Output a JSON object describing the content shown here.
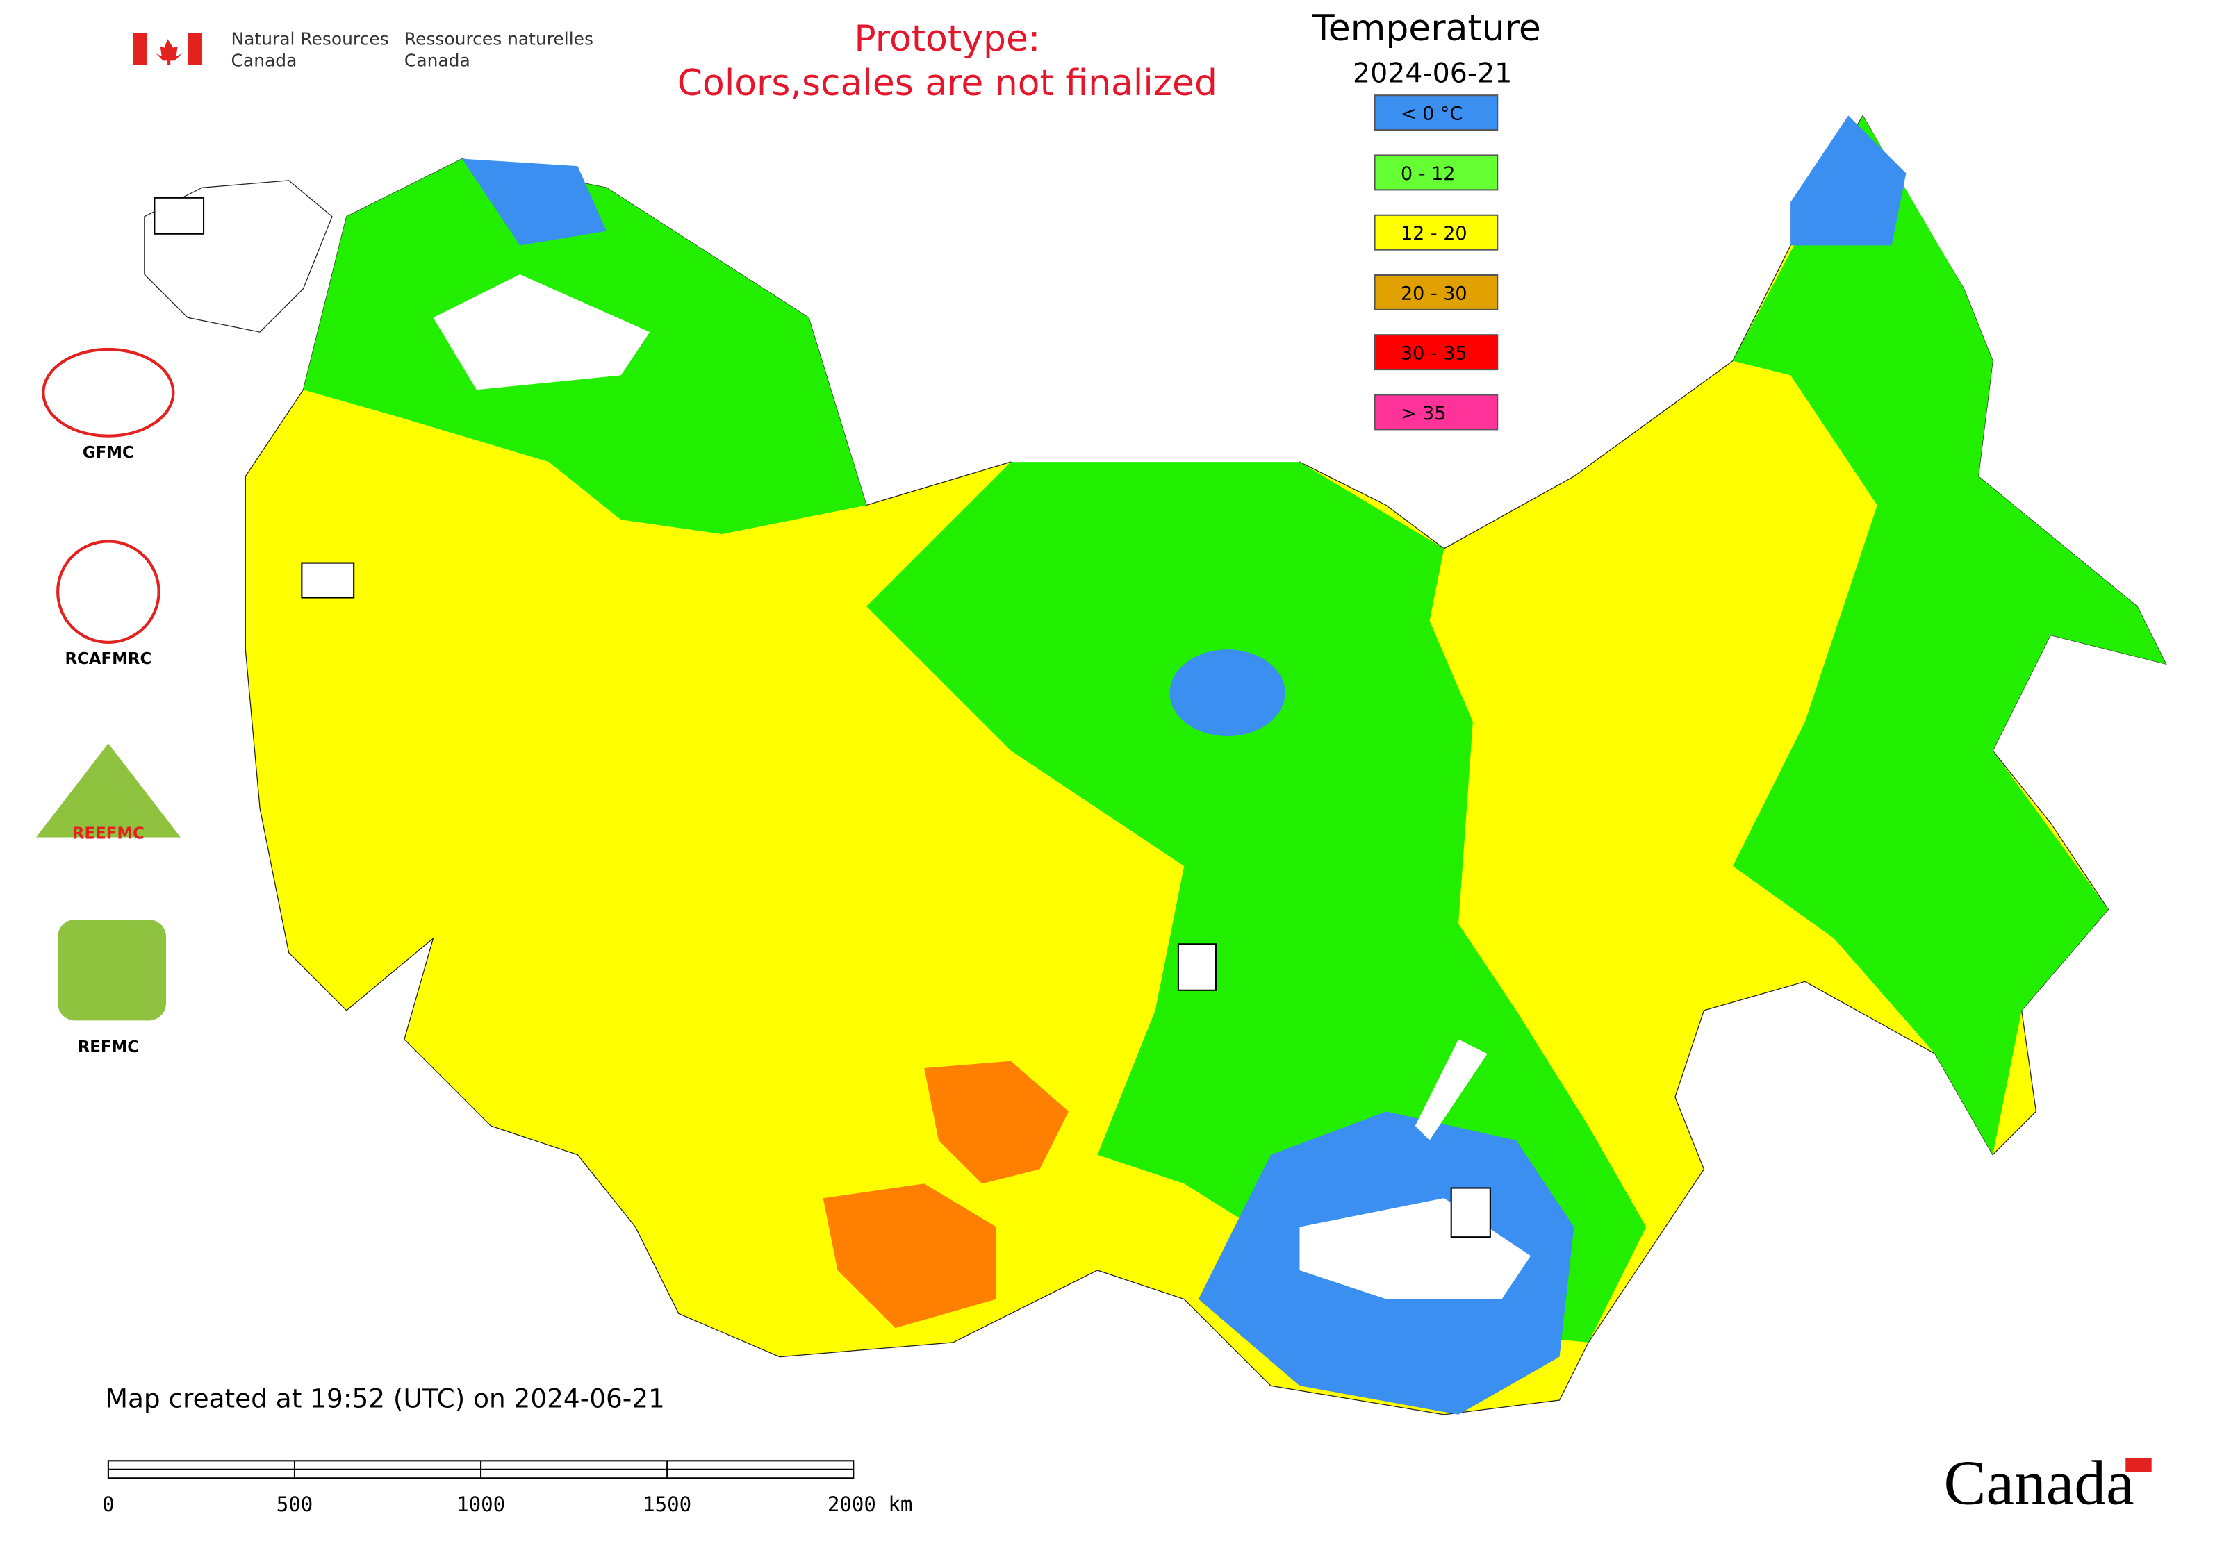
{
  "header": {
    "agency_en": [
      "Natural Resources",
      "Canada"
    ],
    "agency_fr": [
      "Ressources naturelles",
      "Canada"
    ],
    "notice": [
      "Prototype:",
      "Colors,scales are not finalized"
    ]
  },
  "legend": {
    "title": "Temperature",
    "date": "2024-06-21",
    "items": [
      {
        "label": "< 0 °C",
        "color": "#3b8ff0"
      },
      {
        "label": "0 - 12",
        "color": "#66ff33"
      },
      {
        "label": "12 - 20",
        "color": "#ffff00"
      },
      {
        "label": "20 - 30",
        "color": "#e0a000"
      },
      {
        "label": "30 - 35",
        "color": "#ff0000"
      },
      {
        "label": "> 35",
        "color": "#ff3399"
      }
    ]
  },
  "logos": [
    "GFMC",
    "RCAFMRC",
    "REEFMC",
    "REFMC"
  ],
  "footer": {
    "created": "Map created at 19:52 (UTC) on 2024-06-21",
    "scale_labels": [
      "0",
      "500",
      "1000",
      "1500",
      "2000 km"
    ],
    "wordmark": "Canada"
  }
}
